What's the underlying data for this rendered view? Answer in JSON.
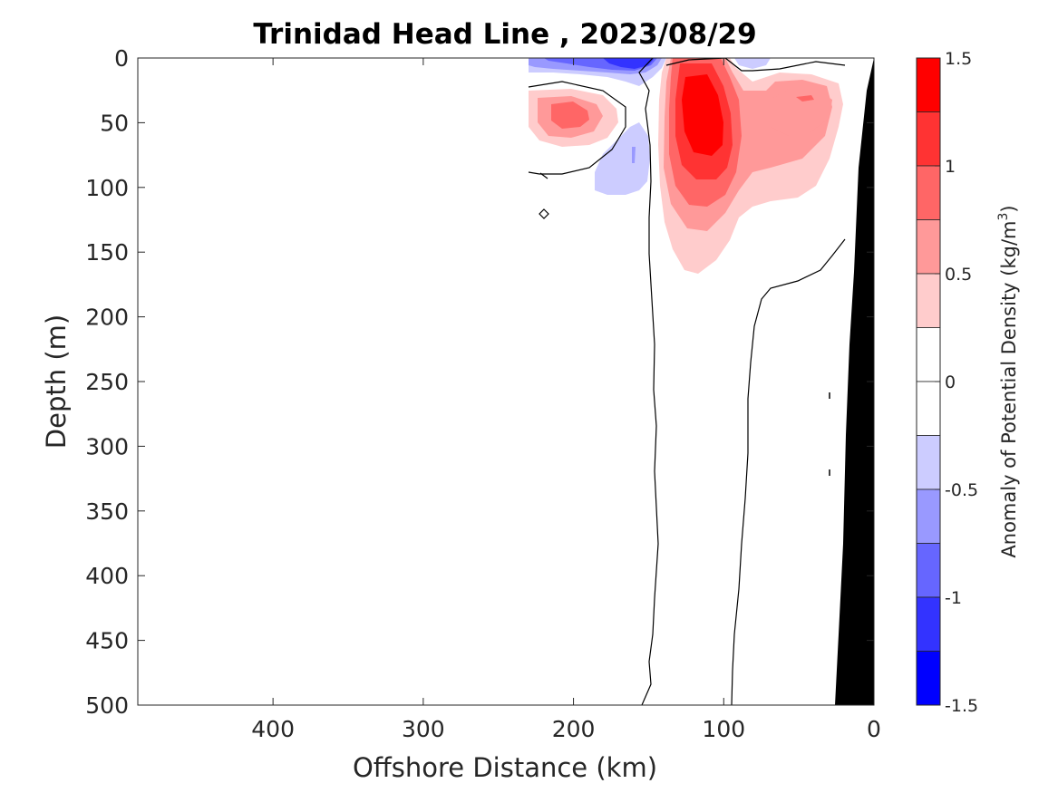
{
  "chart_data": {
    "type": "contour",
    "title": "Trinidad Head Line , 2023/08/29",
    "xlabel": "Offshore Distance (km)",
    "ylabel": "Depth (m)",
    "xlim": [
      490,
      0
    ],
    "ylim": [
      0,
      500
    ],
    "x_ticks": [
      400,
      300,
      200,
      100,
      0
    ],
    "y_ticks": [
      0,
      50,
      100,
      150,
      200,
      250,
      300,
      350,
      400,
      450,
      500
    ],
    "x_reversed": true,
    "y_reversed": true,
    "grid": false,
    "colorbar": {
      "label_main": "Anomaly of Potential Density (kg/m",
      "label_sup": "3",
      "label_end": ")",
      "ticks": [
        1.5,
        1,
        0.5,
        0,
        -0.5,
        -1,
        -1.5
      ],
      "range": [
        -1.5,
        1.5
      ],
      "levels": [
        {
          "lo": 1.25,
          "hi": 1.5,
          "color": "#ff0000"
        },
        {
          "lo": 1.0,
          "hi": 1.25,
          "color": "#ff3333"
        },
        {
          "lo": 0.75,
          "hi": 1.0,
          "color": "#ff6666"
        },
        {
          "lo": 0.5,
          "hi": 0.75,
          "color": "#ff9999"
        },
        {
          "lo": 0.25,
          "hi": 0.5,
          "color": "#ffcccc"
        },
        {
          "lo": 0.0,
          "hi": 0.25,
          "color": "#ffffff"
        },
        {
          "lo": -0.25,
          "hi": 0.0,
          "color": "#ffffff"
        },
        {
          "lo": -0.5,
          "hi": -0.25,
          "color": "#ccccff"
        },
        {
          "lo": -0.75,
          "hi": -0.5,
          "color": "#9999ff"
        },
        {
          "lo": -1.0,
          "hi": -0.75,
          "color": "#6666ff"
        },
        {
          "lo": -1.25,
          "hi": -1.0,
          "color": "#3333ff"
        },
        {
          "lo": -1.5,
          "hi": -1.25,
          "color": "#0000ff"
        }
      ]
    },
    "features": [
      {
        "name": "positive-core-anomaly",
        "center_km": 120,
        "center_depth_m": 45,
        "peak_value": 1.5
      },
      {
        "name": "positive-inshore-anomaly",
        "center_km": 50,
        "center_depth_m": 40,
        "peak_value": 0.75
      },
      {
        "name": "positive-offshore-anomaly",
        "center_km": 210,
        "center_depth_m": 40,
        "peak_value": 1.0
      },
      {
        "name": "negative-surface-anomaly",
        "center_km": 165,
        "center_depth_m": 5,
        "peak_value": -1.25
      },
      {
        "name": "negative-subsurface-anomaly",
        "center_km": 180,
        "center_depth_m": 80,
        "peak_value": -0.5
      }
    ],
    "zero_contours_km_depth": [
      [
        [
          158,
          500
        ],
        [
          157,
          450
        ],
        [
          160,
          400
        ],
        [
          158,
          350
        ],
        [
          160,
          300
        ],
        [
          158,
          250
        ],
        [
          160,
          200
        ],
        [
          162,
          150
        ],
        [
          164,
          110
        ],
        [
          165,
          70
        ],
        [
          160,
          30
        ],
        [
          150,
          0
        ]
      ],
      [
        [
          95,
          500
        ],
        [
          93,
          450
        ],
        [
          90,
          400
        ],
        [
          88,
          350
        ],
        [
          85,
          300
        ],
        [
          84,
          250
        ],
        [
          82,
          200
        ],
        [
          80,
          180
        ],
        [
          70,
          175
        ],
        [
          45,
          160
        ],
        [
          30,
          150
        ],
        [
          25,
          140
        ]
      ]
    ],
    "seafloor_polygon_km_depth": [
      [
        0,
        0
      ],
      [
        0,
        500
      ],
      [
        25,
        500
      ],
      [
        20,
        300
      ],
      [
        12,
        100
      ],
      [
        0,
        0
      ]
    ]
  }
}
